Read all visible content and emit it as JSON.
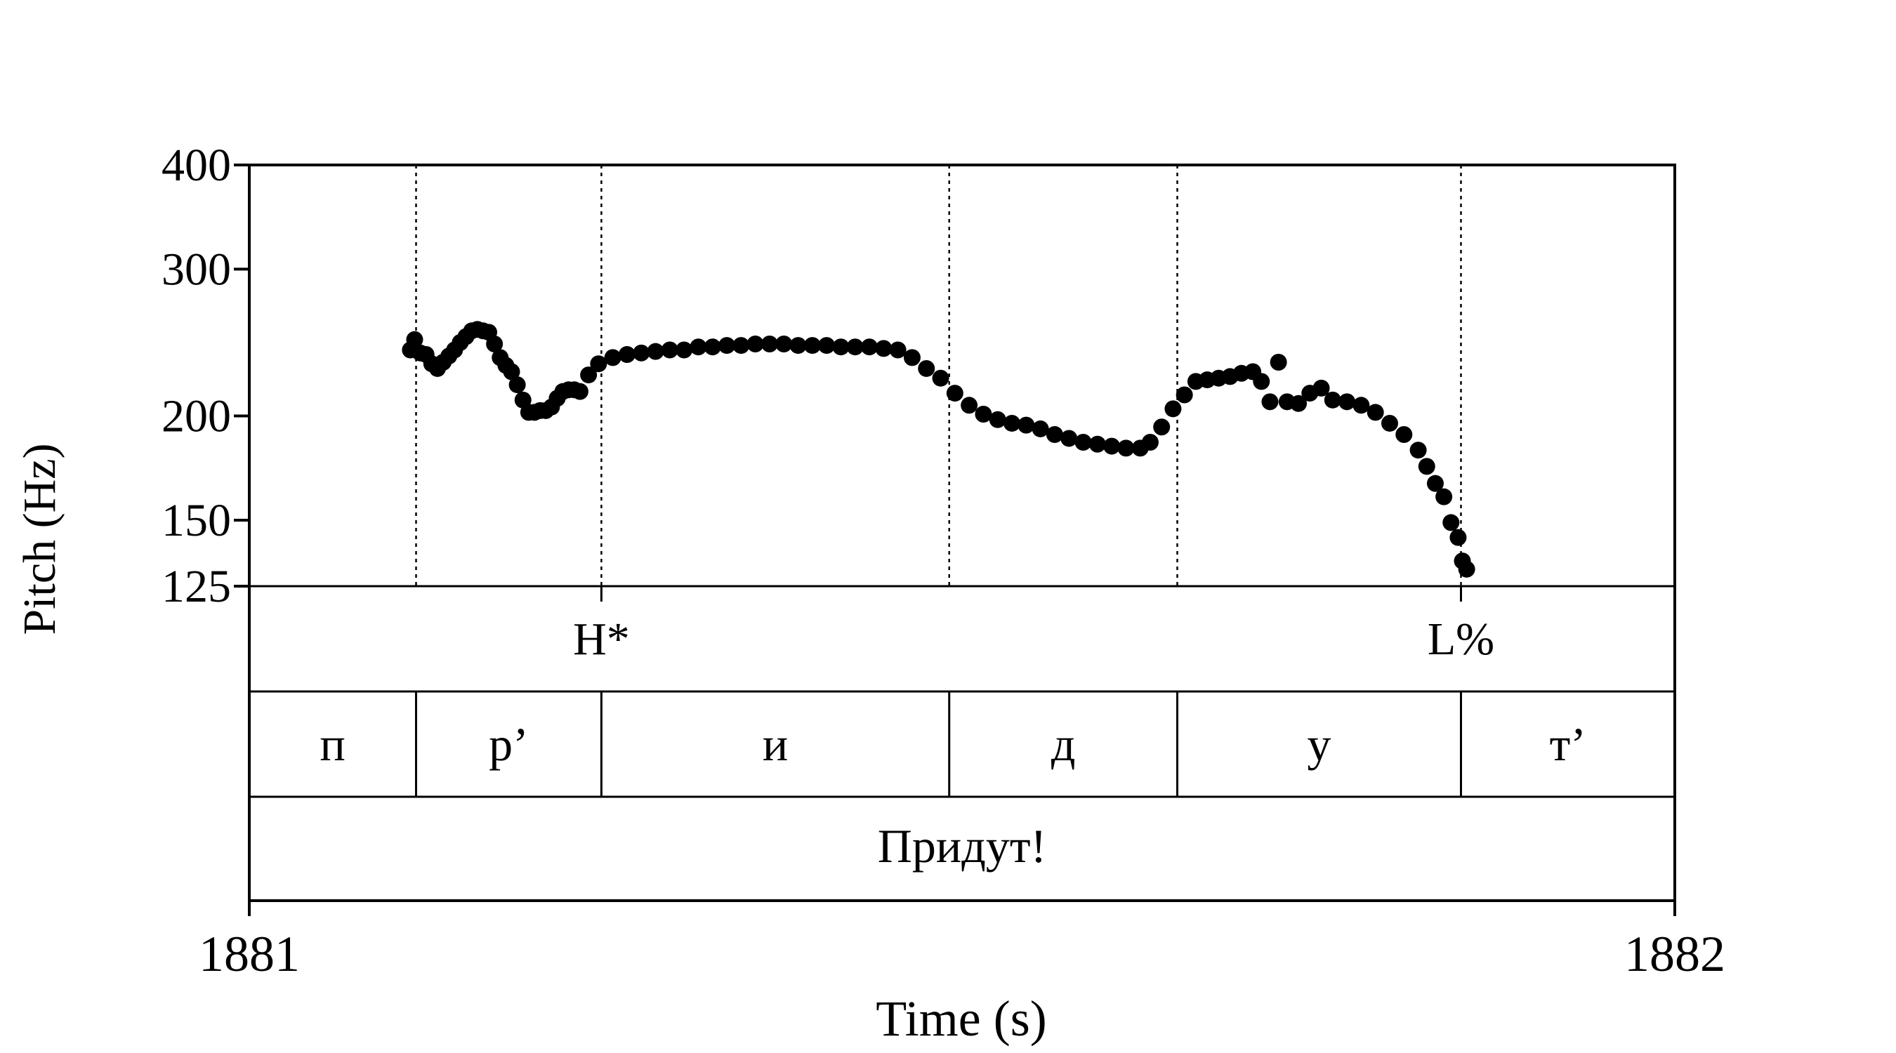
{
  "chart_data": {
    "type": "scatter",
    "xlabel": "Time (s)",
    "ylabel": "Pitch (Hz)",
    "xlim": [
      1881,
      1882
    ],
    "ylim": [
      125,
      400
    ],
    "y_scale": "log",
    "x_ticks": [
      "1881",
      "1882"
    ],
    "y_ticks": [
      {
        "value": 400,
        "label": "400"
      },
      {
        "value": 300,
        "label": "300"
      },
      {
        "value": 200,
        "label": "200"
      },
      {
        "value": 150,
        "label": "150"
      },
      {
        "value": 125,
        "label": "125"
      }
    ],
    "boundaries": [
      1881.117,
      1881.247,
      1881.491,
      1881.651,
      1881.85
    ],
    "tones": [
      {
        "label": "H*",
        "time": 1881.247
      },
      {
        "label": "L%",
        "time": 1881.85
      }
    ],
    "segments": [
      {
        "label": "п",
        "start": 1881.0,
        "end": 1881.117
      },
      {
        "label": "р’",
        "start": 1881.117,
        "end": 1881.247
      },
      {
        "label": "и",
        "start": 1881.247,
        "end": 1881.491
      },
      {
        "label": "д",
        "start": 1881.491,
        "end": 1881.651
      },
      {
        "label": "у",
        "start": 1881.651,
        "end": 1881.85
      },
      {
        "label": "т’",
        "start": 1881.85,
        "end": 1882.0
      }
    ],
    "words": [
      {
        "label": "Придут!",
        "start": 1881.0,
        "end": 1882.0
      }
    ],
    "pitch": [
      [
        1881.113,
        240
      ],
      [
        1881.116,
        247
      ],
      [
        1881.12,
        238
      ],
      [
        1881.124,
        237
      ],
      [
        1881.128,
        231
      ],
      [
        1881.132,
        228
      ],
      [
        1881.136,
        232
      ],
      [
        1881.14,
        236
      ],
      [
        1881.144,
        240
      ],
      [
        1881.148,
        245
      ],
      [
        1881.152,
        249
      ],
      [
        1881.156,
        253
      ],
      [
        1881.16,
        254
      ],
      [
        1881.164,
        253
      ],
      [
        1881.168,
        252
      ],
      [
        1881.172,
        244
      ],
      [
        1881.176,
        235
      ],
      [
        1881.18,
        230
      ],
      [
        1881.184,
        226
      ],
      [
        1881.188,
        218
      ],
      [
        1881.192,
        209
      ],
      [
        1881.196,
        202
      ],
      [
        1881.2,
        202
      ],
      [
        1881.204,
        203
      ],
      [
        1881.208,
        203
      ],
      [
        1881.212,
        205
      ],
      [
        1881.216,
        210
      ],
      [
        1881.22,
        214
      ],
      [
        1881.224,
        215
      ],
      [
        1881.228,
        215
      ],
      [
        1881.232,
        214
      ],
      [
        1881.238,
        224
      ],
      [
        1881.245,
        231
      ],
      [
        1881.255,
        235
      ],
      [
        1881.265,
        237
      ],
      [
        1881.275,
        238
      ],
      [
        1881.285,
        239
      ],
      [
        1881.295,
        240
      ],
      [
        1881.305,
        240
      ],
      [
        1881.315,
        242
      ],
      [
        1881.325,
        242
      ],
      [
        1881.335,
        243
      ],
      [
        1881.345,
        243
      ],
      [
        1881.355,
        244
      ],
      [
        1881.365,
        244
      ],
      [
        1881.375,
        244
      ],
      [
        1881.385,
        243
      ],
      [
        1881.395,
        243
      ],
      [
        1881.405,
        243
      ],
      [
        1881.415,
        242
      ],
      [
        1881.425,
        242
      ],
      [
        1881.435,
        242
      ],
      [
        1881.445,
        241
      ],
      [
        1881.455,
        240
      ],
      [
        1881.465,
        235
      ],
      [
        1881.475,
        228
      ],
      [
        1881.485,
        222
      ],
      [
        1881.495,
        213
      ],
      [
        1881.505,
        206
      ],
      [
        1881.515,
        201
      ],
      [
        1881.525,
        198
      ],
      [
        1881.535,
        196
      ],
      [
        1881.545,
        195
      ],
      [
        1881.555,
        193
      ],
      [
        1881.565,
        190
      ],
      [
        1881.575,
        188
      ],
      [
        1881.585,
        186
      ],
      [
        1881.595,
        185
      ],
      [
        1881.605,
        184
      ],
      [
        1881.615,
        183
      ],
      [
        1881.625,
        183
      ],
      [
        1881.632,
        186
      ],
      [
        1881.64,
        194
      ],
      [
        1881.648,
        204
      ],
      [
        1881.656,
        212
      ],
      [
        1881.664,
        220
      ],
      [
        1881.672,
        221
      ],
      [
        1881.68,
        222
      ],
      [
        1881.688,
        223
      ],
      [
        1881.696,
        225
      ],
      [
        1881.704,
        226
      ],
      [
        1881.71,
        220
      ],
      [
        1881.716,
        208
      ],
      [
        1881.722,
        232
      ],
      [
        1881.728,
        208
      ],
      [
        1881.736,
        207
      ],
      [
        1881.744,
        213
      ],
      [
        1881.752,
        216
      ],
      [
        1881.76,
        209
      ],
      [
        1881.77,
        208
      ],
      [
        1881.78,
        206
      ],
      [
        1881.79,
        202
      ],
      [
        1881.8,
        196
      ],
      [
        1881.81,
        190
      ],
      [
        1881.82,
        182
      ],
      [
        1881.826,
        174
      ],
      [
        1881.832,
        166
      ],
      [
        1881.838,
        160
      ],
      [
        1881.843,
        149
      ],
      [
        1881.848,
        143
      ],
      [
        1881.851,
        134
      ],
      [
        1881.854,
        131
      ]
    ]
  }
}
